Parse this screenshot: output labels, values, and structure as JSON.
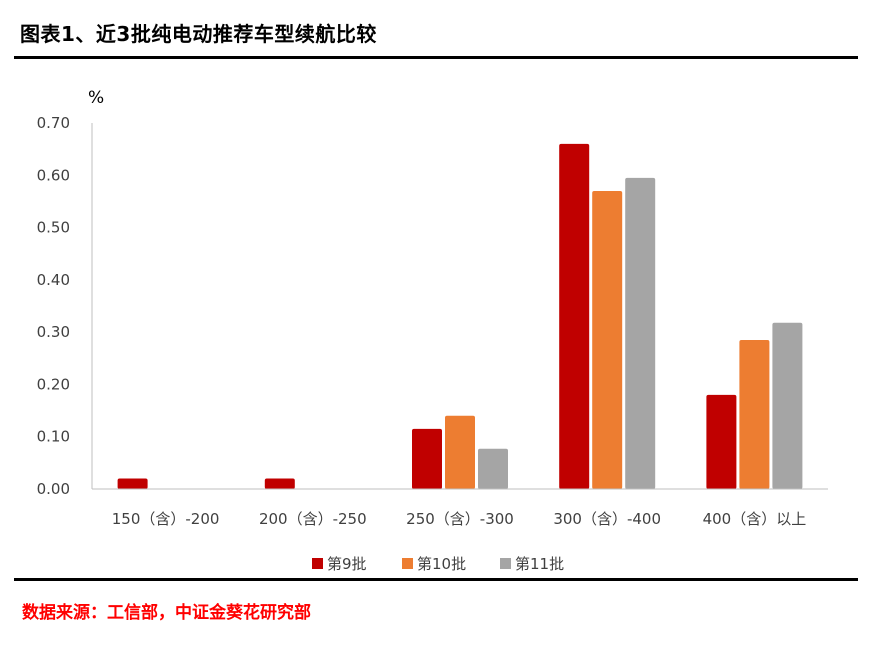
{
  "header": {
    "title": "图表1、近3批纯电动推荐车型续航比较"
  },
  "footer": {
    "source": "数据来源：工信部，中证金葵花研究部"
  },
  "chart_data": {
    "type": "bar",
    "ylabel": "%",
    "ylim": [
      0,
      0.7
    ],
    "yticks": [
      "0.00",
      "0.10",
      "0.20",
      "0.30",
      "0.40",
      "0.50",
      "0.60",
      "0.70"
    ],
    "categories": [
      "150（含）-200",
      "200（含）-250",
      "250（含）-300",
      "300（含）-400",
      "400（含）以上"
    ],
    "series": [
      {
        "name": "第9批",
        "color": "#c00000",
        "values": [
          0.02,
          0.02,
          0.115,
          0.66,
          0.18
        ]
      },
      {
        "name": "第10批",
        "color": "#ed7d31",
        "values": [
          0,
          0,
          0.14,
          0.57,
          0.285
        ]
      },
      {
        "name": "第11批",
        "color": "#a5a5a5",
        "values": [
          0,
          0,
          0.077,
          0.595,
          0.318
        ]
      }
    ],
    "legend": "bottom",
    "grid": false
  }
}
